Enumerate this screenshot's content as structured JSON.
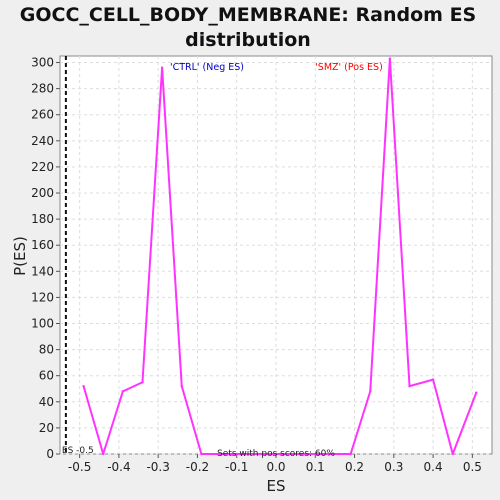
{
  "chart_data": {
    "type": "line",
    "title_line1": "GOCC_CELL_BODY_MEMBRANE: Random ES",
    "title_line2": "distribution",
    "xlabel": "ES",
    "ylabel": "P(ES)",
    "xlim": [
      -0.55,
      0.55
    ],
    "ylim": [
      0,
      305
    ],
    "x_ticks": [
      -0.5,
      -0.4,
      -0.3,
      -0.2,
      -0.1,
      0.0,
      0.1,
      0.2,
      0.3,
      0.4,
      0.5
    ],
    "x_tick_labels": [
      "-0.5",
      "-0.4",
      "-0.3",
      "-0.2",
      "-0.1",
      "0.0",
      "0.1",
      "0.2",
      "0.3",
      "0.4",
      "0.5"
    ],
    "y_ticks": [
      0,
      20,
      40,
      60,
      80,
      100,
      120,
      140,
      160,
      180,
      200,
      220,
      240,
      260,
      280,
      300
    ],
    "y_tick_labels": [
      "0",
      "20",
      "40",
      "60",
      "80",
      "100",
      "120",
      "140",
      "160",
      "180",
      "200",
      "220",
      "240",
      "260",
      "280",
      "300"
    ],
    "grid": true,
    "series": [
      {
        "color": "#ff33ff",
        "x": [
          -0.49,
          -0.44,
          -0.39,
          -0.34,
          -0.29,
          -0.24,
          -0.19,
          -0.14,
          -0.09,
          -0.04,
          0.01,
          0.06,
          0.11,
          0.16,
          0.19,
          0.24,
          0.29,
          0.34,
          0.4,
          0.45,
          0.51
        ],
        "y": [
          52,
          0,
          48,
          55,
          296,
          52,
          0,
          0,
          0,
          0,
          0,
          0,
          0,
          0,
          0,
          48,
          303,
          52,
          57,
          0,
          47
        ]
      }
    ],
    "marker_line": {
      "x": -0.535,
      "label": "ES -0.5"
    },
    "annotations": {
      "neg_label": "'CTRL' (Neg ES)",
      "neg_color": "#0000cc",
      "pos_label": "'SMZ' (Pos ES)",
      "pos_color": "#ff0000",
      "bottom_note": "Sets with pos scores: 60%"
    }
  }
}
